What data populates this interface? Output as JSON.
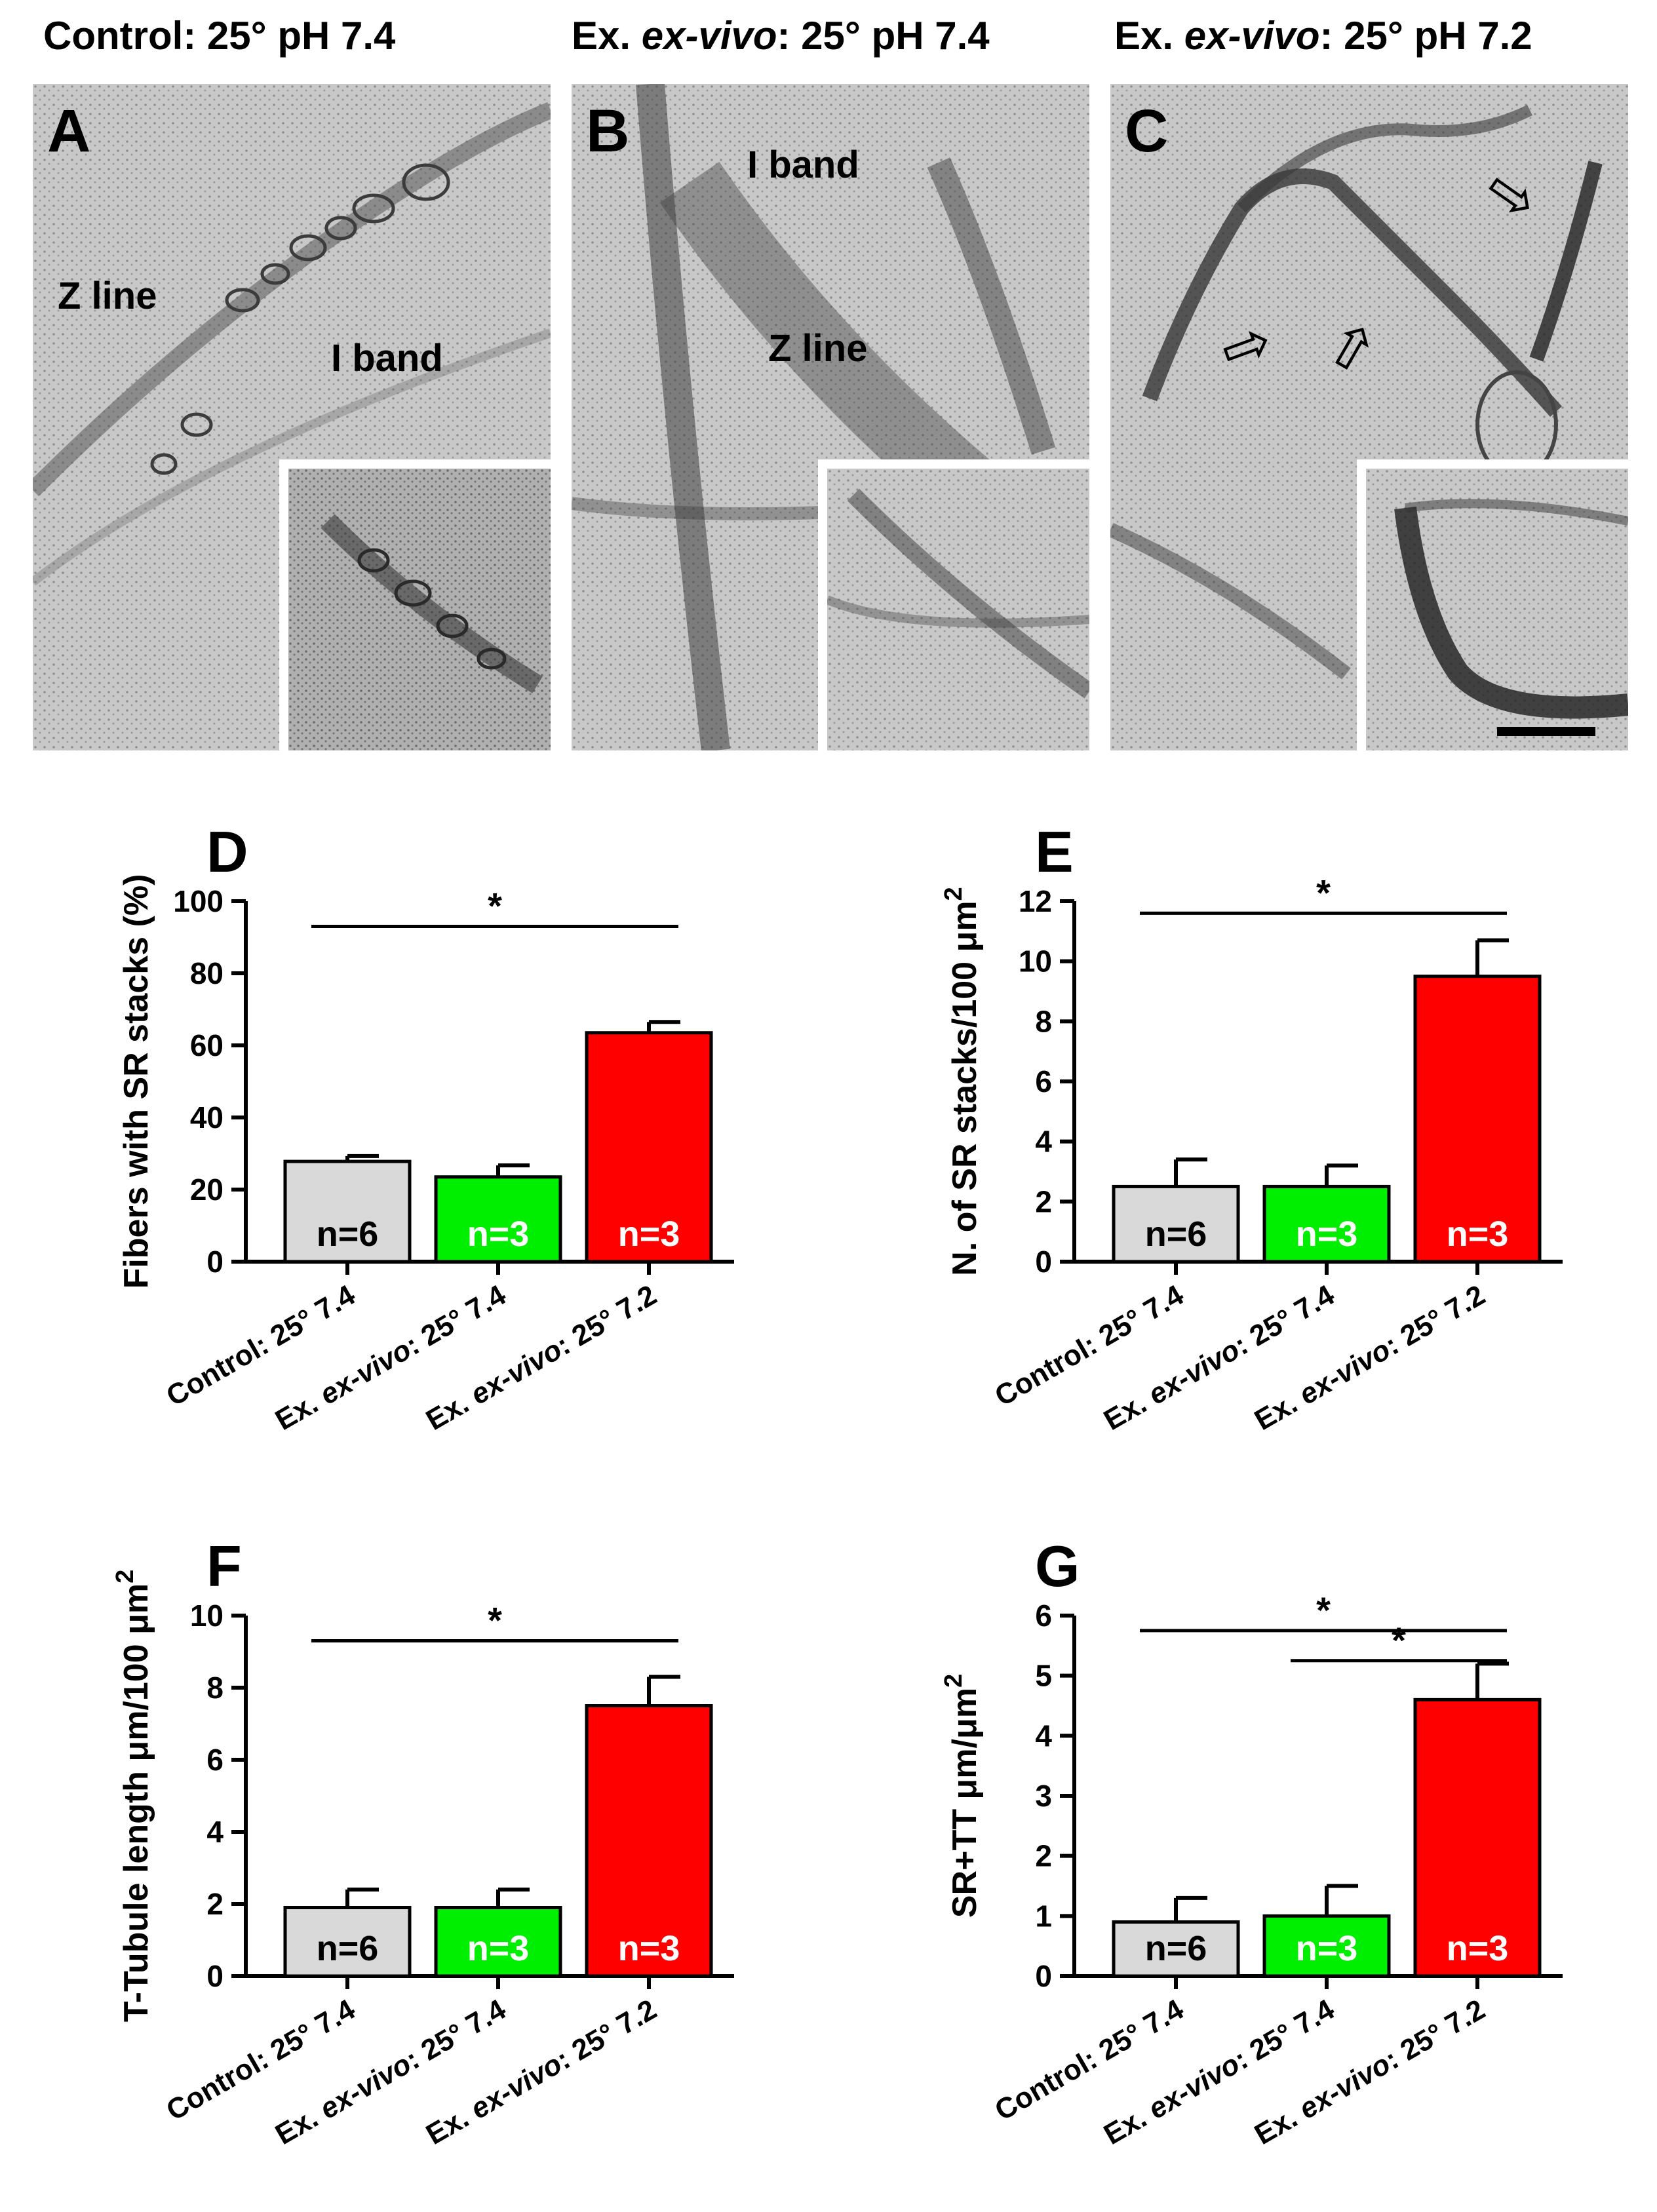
{
  "micrographs": [
    {
      "letter": "A",
      "title_prefix": "Control: 25° pH 7.4",
      "title_italic": "",
      "title_suffix": "",
      "labels": [
        "Z line",
        "I band"
      ],
      "has_scale_bar": false,
      "arrows": 0
    },
    {
      "letter": "B",
      "title_prefix": "Ex. ",
      "title_italic": "ex-vivo",
      "title_suffix": ": 25° pH 7.4",
      "labels": [
        "I band",
        "Z line"
      ],
      "has_scale_bar": false,
      "arrows": 0
    },
    {
      "letter": "C",
      "title_prefix": "Ex. ",
      "title_italic": "ex-vivo",
      "title_suffix": ": 25° pH 7.2",
      "labels": [],
      "has_scale_bar": true,
      "arrows": 3
    }
  ],
  "colors": {
    "control": "#d9d9d9",
    "exvivo_74": "#00ee00",
    "exvivo_72": "#ff0000"
  },
  "chart_data": [
    {
      "panel": "D",
      "type": "bar",
      "ylabel": "Fibers with SR stacks (%)",
      "ylim": [
        0,
        100
      ],
      "yticks": [
        0,
        20,
        40,
        60,
        80,
        100
      ],
      "categories": [
        "Control: 25° 7.4",
        "Ex. ex-vivo: 25° 7.4",
        "Ex. ex-vivo: 25° 7.2"
      ],
      "values": [
        27.8,
        23.5,
        63.5
      ],
      "errors": [
        1.5,
        3.2,
        3.0
      ],
      "n_labels": [
        "n=6",
        "n=3",
        "n=3"
      ],
      "significance": [
        {
          "from": 0,
          "to": 2,
          "label": "*"
        }
      ]
    },
    {
      "panel": "E",
      "type": "bar",
      "ylabel": "N. of SR stacks/100 μm²",
      "ylim": [
        0,
        12
      ],
      "yticks": [
        0,
        2,
        4,
        6,
        8,
        10,
        12
      ],
      "categories": [
        "Control: 25° 7.4",
        "Ex. ex-vivo: 25° 7.4",
        "Ex. ex-vivo: 25° 7.2"
      ],
      "values": [
        2.5,
        2.5,
        9.5
      ],
      "errors": [
        0.9,
        0.7,
        1.2
      ],
      "n_labels": [
        "n=6",
        "n=3",
        "n=3"
      ],
      "significance": [
        {
          "from": 0,
          "to": 2,
          "label": "*"
        }
      ]
    },
    {
      "panel": "F",
      "type": "bar",
      "ylabel": "T-Tubule length μm/100 μm²",
      "ylim": [
        0,
        10
      ],
      "yticks": [
        0,
        2,
        4,
        6,
        8,
        10
      ],
      "categories": [
        "Control: 25° 7.4",
        "Ex. ex-vivo: 25° 7.4",
        "Ex. ex-vivo: 25° 7.2"
      ],
      "values": [
        1.9,
        1.9,
        7.5
      ],
      "errors": [
        0.5,
        0.5,
        0.8
      ],
      "n_labels": [
        "n=6",
        "n=3",
        "n=3"
      ],
      "significance": [
        {
          "from": 0,
          "to": 2,
          "label": "*"
        }
      ]
    },
    {
      "panel": "G",
      "type": "bar",
      "ylabel": "SR+TT μm/μm²",
      "ylim": [
        0,
        6
      ],
      "yticks": [
        0,
        1,
        2,
        3,
        4,
        5,
        6
      ],
      "categories": [
        "Control: 25° 7.4",
        "Ex. ex-vivo: 25° 7.4",
        "Ex. ex-vivo: 25° 7.2"
      ],
      "values": [
        0.9,
        1.0,
        4.6
      ],
      "errors": [
        0.4,
        0.5,
        0.6
      ],
      "n_labels": [
        "n=6",
        "n=3",
        "n=3"
      ],
      "significance": [
        {
          "from": 0,
          "to": 2,
          "label": "*"
        },
        {
          "from": 1,
          "to": 2,
          "label": "*"
        }
      ]
    }
  ]
}
